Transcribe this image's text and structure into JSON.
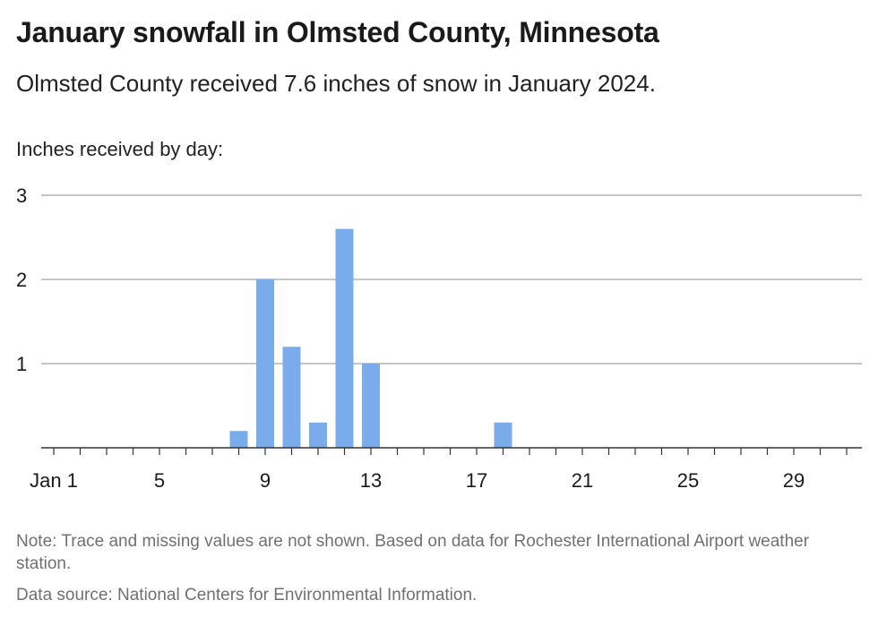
{
  "header": {
    "title": "January snowfall in Olmsted County, Minnesota",
    "subtitle": "Olmsted County received 7.6 inches of snow in January 2024."
  },
  "footer": {
    "note": "Note: Trace and missing values are not shown. Based on data for Rochester International Airport weather station.",
    "source": "Data source: National Centers for Environmental Information."
  },
  "colors": {
    "bar": "#7aabeb",
    "grid": "#b3b3b3",
    "baseline": "#333333"
  },
  "chart_data": {
    "type": "bar",
    "title": "January snowfall in Olmsted County, Minnesota",
    "ylabel": "Inches received by day:",
    "xlabel": "",
    "ylim": [
      0,
      3
    ],
    "yticks": [
      1,
      2,
      3
    ],
    "xlim": [
      1,
      31
    ],
    "xticks": [
      {
        "x": 1,
        "label": "Jan 1"
      },
      {
        "x": 5,
        "label": "5"
      },
      {
        "x": 9,
        "label": "9"
      },
      {
        "x": 13,
        "label": "13"
      },
      {
        "x": 17,
        "label": "17"
      },
      {
        "x": 21,
        "label": "21"
      },
      {
        "x": 25,
        "label": "25"
      },
      {
        "x": 29,
        "label": "29"
      }
    ],
    "grid": true,
    "series": [
      {
        "x": [
          8,
          9,
          10,
          11,
          12,
          13,
          18
        ],
        "values": [
          0.2,
          2.0,
          1.2,
          0.3,
          2.6,
          1.0,
          0.3
        ]
      }
    ]
  }
}
